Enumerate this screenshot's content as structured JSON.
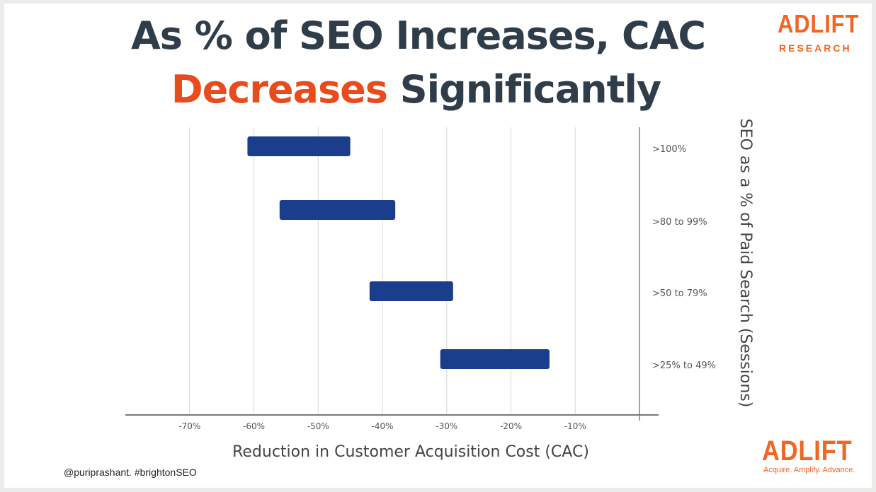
{
  "title": {
    "line1": "As % of SEO Increases, CAC",
    "line2_accent": "Decreases",
    "line2_rest": " Significantly"
  },
  "logo": {
    "word": "ADLIFT",
    "research": "RESEARCH",
    "tagline": "Acquire. Amplify. Advance."
  },
  "footer": {
    "handle": "@puriprashant. #brightonSEO"
  },
  "colors": {
    "bar": "#1a3e8c",
    "accent": "#e84b1c",
    "title": "#2f3d4a",
    "brand": "#f26522"
  },
  "chart_data": {
    "type": "bar",
    "orientation": "horizontal-range",
    "categories": [
      ">100%",
      ">80 to 99%",
      ">50 to 79%",
      ">25% to 49%"
    ],
    "ranges": [
      [
        -61,
        -45
      ],
      [
        -56,
        -38
      ],
      [
        -42,
        -29
      ],
      [
        -31,
        -14
      ]
    ],
    "xlabel": "Reduction in Customer Acquisition Cost (CAC)",
    "ylabel": "SEO as a % of Paid Search (Sessions)",
    "xticks": [
      -70,
      -60,
      -50,
      -40,
      -30,
      -20,
      -10
    ],
    "xtick_labels": [
      "-70%",
      "-60%",
      "-50%",
      "-40%",
      "-30%",
      "-20%",
      "-10%"
    ],
    "xlim": [
      -80,
      0
    ],
    "grid": true,
    "y_axis_side": "right"
  }
}
